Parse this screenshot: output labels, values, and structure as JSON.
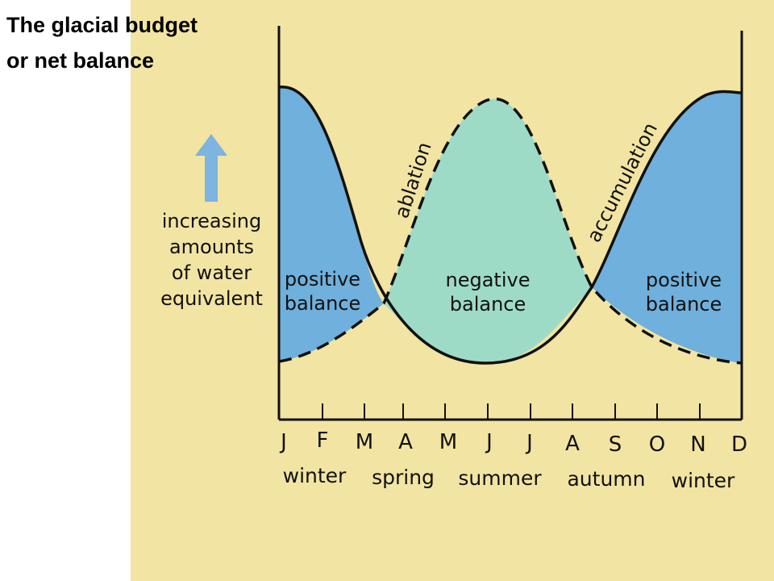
{
  "slide": {
    "title_line1": "The glacial budget",
    "title_line2": "or net balance"
  },
  "diagram": {
    "y_axis_label": [
      "increasing",
      "amounts",
      "of water",
      "equivalent"
    ],
    "y_axis_arrow_icon": "up-arrow-icon",
    "curves": {
      "ablation": "ablation",
      "accumulation": "accumulation"
    },
    "regions": {
      "positive_left": [
        "positive",
        "balance"
      ],
      "negative": [
        "negative",
        "balance"
      ],
      "positive_right": [
        "positive",
        "balance"
      ]
    },
    "months": [
      "J",
      "F",
      "M",
      "A",
      "M",
      "J",
      "J",
      "A",
      "S",
      "O",
      "N",
      "D"
    ],
    "seasons": [
      "winter",
      "spring",
      "summer",
      "autumn",
      "winter"
    ],
    "colors": {
      "background": "#f2e4a2",
      "positive_fill": "#6fb0dc",
      "negative_fill": "#9edbc6",
      "arrow": "#7db4e0",
      "line": "#111111"
    }
  }
}
